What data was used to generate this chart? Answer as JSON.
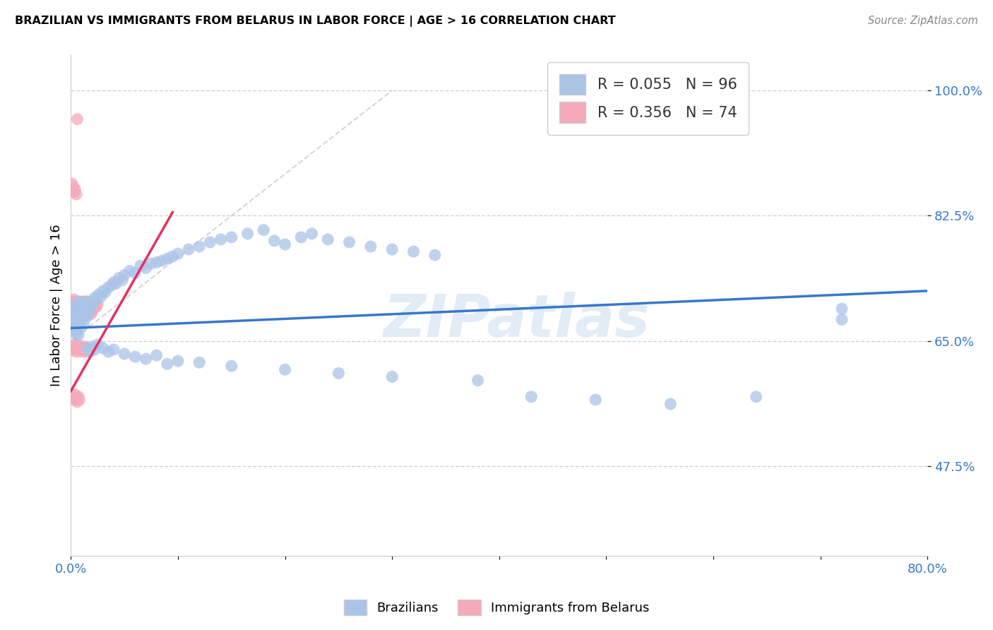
{
  "title": "BRAZILIAN VS IMMIGRANTS FROM BELARUS IN LABOR FORCE | AGE > 16 CORRELATION CHART",
  "source": "Source: ZipAtlas.com",
  "ylabel": "In Labor Force | Age > 16",
  "xlim": [
    0.0,
    0.8
  ],
  "ylim": [
    0.35,
    1.05
  ],
  "xtick_positions": [
    0.0,
    0.1,
    0.2,
    0.3,
    0.4,
    0.5,
    0.6,
    0.7,
    0.8
  ],
  "xticklabels": [
    "0.0%",
    "",
    "",
    "",
    "",
    "",
    "",
    "",
    "80.0%"
  ],
  "ytick_positions": [
    0.475,
    0.65,
    0.825,
    1.0
  ],
  "ytick_labels": [
    "47.5%",
    "65.0%",
    "82.5%",
    "100.0%"
  ],
  "r_blue": 0.055,
  "n_blue": 96,
  "r_pink": 0.356,
  "n_pink": 74,
  "blue_color": "#aac4e8",
  "pink_color": "#f5aaba",
  "blue_line_color": "#3878c8",
  "pink_line_color": "#e83060",
  "diag_line_color": "#cccccc",
  "legend_label_blue": "Brazilians",
  "legend_label_pink": "Immigrants from Belarus",
  "watermark": "ZIPatlas",
  "watermark_color": "#b8d0ea",
  "blue_scatter_x": [
    0.001,
    0.002,
    0.002,
    0.003,
    0.003,
    0.004,
    0.004,
    0.005,
    0.005,
    0.006,
    0.006,
    0.007,
    0.007,
    0.008,
    0.008,
    0.009,
    0.009,
    0.01,
    0.01,
    0.011,
    0.011,
    0.012,
    0.012,
    0.013,
    0.014,
    0.015,
    0.016,
    0.017,
    0.018,
    0.02,
    0.022,
    0.024,
    0.026,
    0.028,
    0.03,
    0.032,
    0.035,
    0.038,
    0.04,
    0.042,
    0.045,
    0.048,
    0.05,
    0.055,
    0.06,
    0.065,
    0.07,
    0.075,
    0.08,
    0.085,
    0.09,
    0.095,
    0.1,
    0.11,
    0.12,
    0.13,
    0.14,
    0.15,
    0.165,
    0.18,
    0.19,
    0.2,
    0.215,
    0.225,
    0.24,
    0.26,
    0.28,
    0.3,
    0.32,
    0.34,
    0.015,
    0.018,
    0.02,
    0.022,
    0.025,
    0.03,
    0.035,
    0.04,
    0.05,
    0.06,
    0.07,
    0.08,
    0.09,
    0.1,
    0.12,
    0.15,
    0.2,
    0.25,
    0.3,
    0.38,
    0.43,
    0.49,
    0.56,
    0.64,
    0.72,
    0.72
  ],
  "blue_scatter_y": [
    0.68,
    0.692,
    0.672,
    0.695,
    0.665,
    0.688,
    0.678,
    0.7,
    0.66,
    0.695,
    0.67,
    0.705,
    0.658,
    0.69,
    0.675,
    0.698,
    0.668,
    0.702,
    0.68,
    0.695,
    0.685,
    0.7,
    0.675,
    0.688,
    0.692,
    0.705,
    0.685,
    0.698,
    0.695,
    0.7,
    0.71,
    0.708,
    0.715,
    0.712,
    0.72,
    0.718,
    0.725,
    0.728,
    0.732,
    0.73,
    0.738,
    0.735,
    0.742,
    0.748,
    0.745,
    0.755,
    0.752,
    0.758,
    0.76,
    0.762,
    0.765,
    0.768,
    0.772,
    0.778,
    0.782,
    0.788,
    0.792,
    0.795,
    0.8,
    0.805,
    0.79,
    0.785,
    0.795,
    0.8,
    0.792,
    0.788,
    0.782,
    0.778,
    0.775,
    0.77,
    0.64,
    0.635,
    0.642,
    0.638,
    0.645,
    0.64,
    0.635,
    0.638,
    0.632,
    0.628,
    0.625,
    0.63,
    0.618,
    0.622,
    0.62,
    0.615,
    0.61,
    0.605,
    0.6,
    0.595,
    0.572,
    0.568,
    0.562,
    0.572,
    0.68,
    0.695
  ],
  "pink_scatter_x": [
    0.001,
    0.001,
    0.002,
    0.002,
    0.003,
    0.003,
    0.004,
    0.004,
    0.005,
    0.005,
    0.006,
    0.006,
    0.007,
    0.007,
    0.008,
    0.008,
    0.009,
    0.009,
    0.01,
    0.01,
    0.011,
    0.011,
    0.012,
    0.012,
    0.013,
    0.013,
    0.014,
    0.014,
    0.015,
    0.015,
    0.016,
    0.016,
    0.017,
    0.017,
    0.018,
    0.018,
    0.019,
    0.019,
    0.02,
    0.02,
    0.021,
    0.022,
    0.023,
    0.024,
    0.025,
    0.001,
    0.002,
    0.003,
    0.004,
    0.005,
    0.006,
    0.007,
    0.008,
    0.009,
    0.01,
    0.011,
    0.012,
    0.013,
    0.014,
    0.015,
    0.001,
    0.002,
    0.003,
    0.004,
    0.005,
    0.006,
    0.007,
    0.008,
    0.001,
    0.002,
    0.003,
    0.004,
    0.005,
    0.006
  ],
  "pink_scatter_y": [
    0.69,
    0.7,
    0.695,
    0.705,
    0.698,
    0.708,
    0.692,
    0.702,
    0.695,
    0.705,
    0.688,
    0.698,
    0.692,
    0.7,
    0.695,
    0.705,
    0.688,
    0.698,
    0.692,
    0.7,
    0.695,
    0.705,
    0.69,
    0.698,
    0.695,
    0.705,
    0.692,
    0.7,
    0.695,
    0.705,
    0.69,
    0.698,
    0.688,
    0.695,
    0.692,
    0.7,
    0.688,
    0.698,
    0.692,
    0.7,
    0.695,
    0.7,
    0.705,
    0.698,
    0.702,
    0.638,
    0.642,
    0.638,
    0.645,
    0.635,
    0.645,
    0.64,
    0.638,
    0.642,
    0.635,
    0.642,
    0.638,
    0.642,
    0.635,
    0.64,
    0.57,
    0.575,
    0.568,
    0.575,
    0.57,
    0.565,
    0.572,
    0.568,
    0.87,
    0.865,
    0.858,
    0.862,
    0.855,
    0.96
  ],
  "blue_line_x": [
    0.0,
    0.8
  ],
  "blue_line_y": [
    0.668,
    0.72
  ],
  "pink_line_x": [
    0.0,
    0.095
  ],
  "pink_line_y": [
    0.58,
    0.83
  ],
  "diag_line_x": [
    0.0,
    0.3
  ],
  "diag_line_y": [
    0.65,
    1.0
  ]
}
